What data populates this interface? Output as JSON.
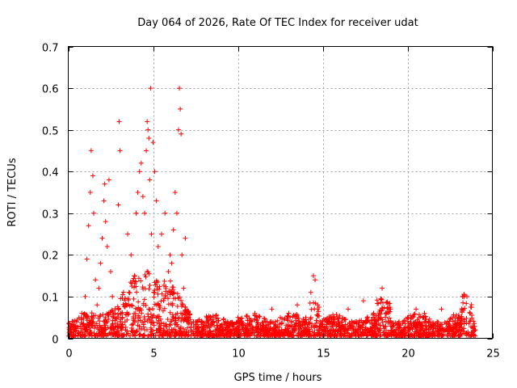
{
  "chart_data": {
    "type": "scatter",
    "title": "Day 064 of 2026, Rate Of TEC Index for receiver udat",
    "xlabel": "GPS time / hours",
    "ylabel": "ROTI / TECUs",
    "xlim": [
      0,
      25
    ],
    "ylim": [
      0,
      0.7
    ],
    "xticks": [
      "0",
      "5",
      "10",
      "15",
      "20",
      "25"
    ],
    "yticks": [
      "0",
      "0.1",
      "0.2",
      "0.3",
      "0.4",
      "0.5",
      "0.6",
      "0.7"
    ],
    "grid": true,
    "marker": "plus",
    "color": "#ff0000",
    "sample_points": [
      [
        0.1,
        0.02
      ],
      [
        0.3,
        0.03
      ],
      [
        0.5,
        0.04
      ],
      [
        0.8,
        0.06
      ],
      [
        1.0,
        0.1
      ],
      [
        1.1,
        0.19
      ],
      [
        1.2,
        0.27
      ],
      [
        1.3,
        0.35
      ],
      [
        1.35,
        0.45
      ],
      [
        1.45,
        0.39
      ],
      [
        1.5,
        0.3
      ],
      [
        1.6,
        0.14
      ],
      [
        1.7,
        0.08
      ],
      [
        1.8,
        0.12
      ],
      [
        1.9,
        0.18
      ],
      [
        2.0,
        0.24
      ],
      [
        2.1,
        0.33
      ],
      [
        2.15,
        0.37
      ],
      [
        2.2,
        0.28
      ],
      [
        2.3,
        0.22
      ],
      [
        2.4,
        0.38
      ],
      [
        2.5,
        0.16
      ],
      [
        2.6,
        0.1
      ],
      [
        2.75,
        0.06
      ],
      [
        2.95,
        0.32
      ],
      [
        3.0,
        0.52
      ],
      [
        3.05,
        0.45
      ],
      [
        3.2,
        0.05
      ],
      [
        3.5,
        0.25
      ],
      [
        3.7,
        0.2
      ],
      [
        3.9,
        0.15
      ],
      [
        4.0,
        0.3
      ],
      [
        4.1,
        0.35
      ],
      [
        4.2,
        0.4
      ],
      [
        4.3,
        0.42
      ],
      [
        4.4,
        0.34
      ],
      [
        4.5,
        0.3
      ],
      [
        4.6,
        0.45
      ],
      [
        4.65,
        0.52
      ],
      [
        4.7,
        0.5
      ],
      [
        4.75,
        0.48
      ],
      [
        4.8,
        0.38
      ],
      [
        4.85,
        0.6
      ],
      [
        4.9,
        0.25
      ],
      [
        5.0,
        0.47
      ],
      [
        5.1,
        0.4
      ],
      [
        5.2,
        0.33
      ],
      [
        5.3,
        0.22
      ],
      [
        5.5,
        0.25
      ],
      [
        5.7,
        0.3
      ],
      [
        5.9,
        0.16
      ],
      [
        6.0,
        0.2
      ],
      [
        6.1,
        0.18
      ],
      [
        6.2,
        0.26
      ],
      [
        6.3,
        0.35
      ],
      [
        6.4,
        0.3
      ],
      [
        6.5,
        0.5
      ],
      [
        6.55,
        0.6
      ],
      [
        6.6,
        0.55
      ],
      [
        6.65,
        0.49
      ],
      [
        6.7,
        0.2
      ],
      [
        6.8,
        0.12
      ],
      [
        6.9,
        0.24
      ],
      [
        7.0,
        0.06
      ],
      [
        7.5,
        0.03
      ],
      [
        8.2,
        0.05
      ],
      [
        9.0,
        0.03
      ],
      [
        10.0,
        0.05
      ],
      [
        11.0,
        0.06
      ],
      [
        12.0,
        0.07
      ],
      [
        12.5,
        0.05
      ],
      [
        13.0,
        0.06
      ],
      [
        13.5,
        0.08
      ],
      [
        14.0,
        0.05
      ],
      [
        14.3,
        0.11
      ],
      [
        14.45,
        0.15
      ],
      [
        14.55,
        0.14
      ],
      [
        14.7,
        0.07
      ],
      [
        15.5,
        0.05
      ],
      [
        16.5,
        0.07
      ],
      [
        17.4,
        0.09
      ],
      [
        18.0,
        0.06
      ],
      [
        18.5,
        0.12
      ],
      [
        19.0,
        0.07
      ],
      [
        20.0,
        0.05
      ],
      [
        20.5,
        0.07
      ],
      [
        21.0,
        0.06
      ],
      [
        22.0,
        0.07
      ],
      [
        23.0,
        0.05
      ],
      [
        23.5,
        0.1
      ],
      [
        23.7,
        0.06
      ],
      [
        24.0,
        0.02
      ]
    ]
  }
}
